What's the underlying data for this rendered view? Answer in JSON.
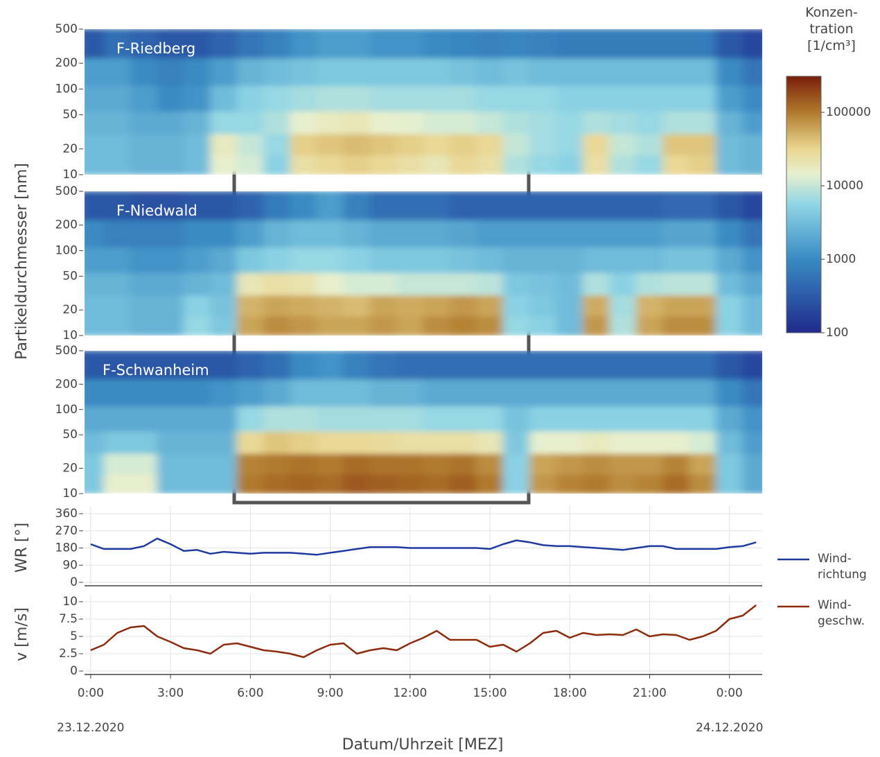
{
  "x_axis": {
    "label": "Datum/Uhrzeit [MEZ]",
    "xlim": [
      -0.23,
      25.23
    ],
    "xticks": [
      {
        "value": 0,
        "label": "0:00"
      },
      {
        "value": 3,
        "label": "3:00"
      },
      {
        "value": 6,
        "label": "6:00"
      },
      {
        "value": 9,
        "label": "9:00"
      },
      {
        "value": 12,
        "label": "12:00"
      },
      {
        "value": 15,
        "label": "15:00"
      },
      {
        "value": 18,
        "label": "18:00"
      },
      {
        "value": 21,
        "label": "21:00"
      },
      {
        "value": 24,
        "label": "0:00"
      }
    ],
    "date_labels": [
      {
        "value": 0,
        "label": "23.12.2020"
      },
      {
        "value": 24,
        "label": "24.12.2020"
      }
    ]
  },
  "heatmap_y_label": "Partikeldurchmesser [nm]",
  "colorbar": {
    "title": "Konzen-\ntration\n[1/cm³]",
    "clim": [
      100,
      310000
    ],
    "log": true,
    "ticks": [
      100,
      1000,
      10000,
      100000
    ],
    "colorscale": [
      [
        0,
        "#1f2a8c"
      ],
      [
        0.29,
        "#3a8cc4"
      ],
      [
        0.5,
        "#8fd6e6"
      ],
      [
        0.62,
        "#e8f0cf"
      ],
      [
        0.72,
        "#e9d58f"
      ],
      [
        0.86,
        "#b07a2c"
      ],
      [
        1,
        "#7a1e0a"
      ]
    ]
  },
  "chart_data": [
    {
      "type": "heatmap",
      "title": "F-Riedberg",
      "log_y": true,
      "ylim": [
        10,
        500
      ],
      "yticks": [
        10,
        20,
        50,
        100,
        200,
        500
      ],
      "x": [
        0,
        1,
        2,
        3,
        4,
        5,
        6,
        7,
        8,
        9,
        10,
        11,
        12,
        13,
        14,
        15,
        16,
        17,
        18,
        19,
        20,
        21,
        22,
        23,
        24,
        25
      ],
      "y_bins": [
        10,
        17,
        30,
        55,
        110,
        230,
        500
      ],
      "values": [
        [
          3000,
          3000,
          2500,
          2500,
          3000,
          15000,
          12000,
          5000,
          25000,
          30000,
          35000,
          30000,
          25000,
          20000,
          30000,
          25000,
          8000,
          6000,
          5000,
          25000,
          8000,
          6000,
          30000,
          35000,
          3000,
          2500
        ],
        [
          3000,
          3000,
          2500,
          2500,
          3000,
          18000,
          10000,
          6000,
          35000,
          40000,
          45000,
          40000,
          35000,
          30000,
          35000,
          30000,
          10000,
          7000,
          6000,
          30000,
          10000,
          8000,
          40000,
          40000,
          3000,
          2500
        ],
        [
          2500,
          2500,
          2000,
          2000,
          2500,
          6000,
          6000,
          8000,
          15000,
          18000,
          20000,
          15000,
          14000,
          12000,
          12000,
          10000,
          8000,
          7000,
          6000,
          8000,
          7000,
          6000,
          8000,
          8000,
          2500,
          1500
        ],
        [
          2000,
          2000,
          1500,
          1000,
          1200,
          3000,
          5000,
          6000,
          7000,
          8000,
          8000,
          7000,
          7000,
          7000,
          7000,
          6000,
          6000,
          6000,
          5000,
          5000,
          5000,
          5000,
          5000,
          5000,
          1500,
          1000
        ],
        [
          1500,
          1500,
          1000,
          800,
          1000,
          1500,
          2500,
          3000,
          3500,
          4000,
          4000,
          4000,
          4000,
          4000,
          3500,
          3000,
          3500,
          3000,
          3000,
          3000,
          3000,
          3000,
          3000,
          3000,
          1000,
          600
        ],
        [
          300,
          500,
          400,
          300,
          300,
          400,
          600,
          800,
          1200,
          1500,
          1500,
          1200,
          1200,
          1000,
          900,
          800,
          900,
          800,
          700,
          700,
          700,
          700,
          700,
          700,
          300,
          200
        ]
      ]
    },
    {
      "type": "heatmap",
      "title": "F-Niedwald",
      "log_y": true,
      "ylim": [
        10,
        500
      ],
      "yticks": [
        10,
        20,
        50,
        100,
        200,
        500
      ],
      "x": [
        0,
        1,
        2,
        3,
        4,
        5,
        6,
        7,
        8,
        9,
        10,
        11,
        12,
        13,
        14,
        15,
        16,
        17,
        18,
        19,
        20,
        21,
        22,
        23,
        24,
        25
      ],
      "y_bins": [
        10,
        17,
        30,
        55,
        110,
        230,
        500
      ],
      "values": [
        [
          3000,
          3000,
          2500,
          2500,
          6000,
          4000,
          60000,
          80000,
          70000,
          60000,
          60000,
          70000,
          60000,
          80000,
          90000,
          80000,
          6000,
          5000,
          3000,
          70000,
          8000,
          60000,
          80000,
          80000,
          5000,
          3000
        ],
        [
          3000,
          3000,
          2500,
          2500,
          5000,
          3500,
          50000,
          60000,
          55000,
          50000,
          45000,
          60000,
          55000,
          60000,
          70000,
          60000,
          5000,
          4000,
          3000,
          55000,
          7000,
          50000,
          60000,
          60000,
          5000,
          3000
        ],
        [
          2500,
          2500,
          2000,
          2000,
          2500,
          3000,
          20000,
          25000,
          22000,
          15000,
          12000,
          12000,
          10000,
          10000,
          10000,
          9000,
          4000,
          3500,
          3000,
          8000,
          5000,
          8000,
          9000,
          9000,
          3000,
          2000
        ],
        [
          1500,
          1500,
          1200,
          1200,
          1500,
          2000,
          4000,
          5000,
          6000,
          6000,
          5000,
          4000,
          4000,
          4000,
          3500,
          3000,
          2500,
          2500,
          2500,
          3000,
          3000,
          3000,
          3500,
          3500,
          2000,
          1200
        ],
        [
          1000,
          800,
          800,
          800,
          1000,
          1000,
          1500,
          2500,
          3000,
          3000,
          2500,
          2000,
          2000,
          2000,
          1800,
          1500,
          1500,
          1500,
          1500,
          1500,
          1500,
          1500,
          1800,
          1800,
          1000,
          600
        ],
        [
          300,
          300,
          250,
          250,
          300,
          300,
          400,
          700,
          1000,
          1500,
          800,
          500,
          500,
          500,
          400,
          400,
          400,
          400,
          400,
          400,
          400,
          400,
          450,
          450,
          300,
          200
        ]
      ]
    },
    {
      "type": "heatmap",
      "title": "F-Schwanheim",
      "log_y": true,
      "ylim": [
        10,
        500
      ],
      "yticks": [
        10,
        20,
        50,
        100,
        200,
        500
      ],
      "x": [
        0,
        1,
        2,
        3,
        4,
        5,
        6,
        7,
        8,
        9,
        10,
        11,
        12,
        13,
        14,
        15,
        16,
        17,
        18,
        19,
        20,
        21,
        22,
        23,
        24,
        25
      ],
      "y_bins": [
        10,
        17,
        30,
        55,
        110,
        230,
        500
      ],
      "values": [
        [
          4000,
          15000,
          15000,
          3000,
          3000,
          3000,
          100000,
          120000,
          130000,
          120000,
          150000,
          140000,
          130000,
          120000,
          140000,
          100000,
          5000,
          70000,
          90000,
          100000,
          80000,
          90000,
          120000,
          80000,
          4000,
          2000
        ],
        [
          4000,
          12000,
          12000,
          3000,
          3000,
          3000,
          90000,
          100000,
          110000,
          100000,
          120000,
          110000,
          110000,
          100000,
          110000,
          80000,
          5000,
          60000,
          70000,
          80000,
          70000,
          70000,
          90000,
          60000,
          4000,
          2000
        ],
        [
          3000,
          4000,
          4000,
          2500,
          2500,
          2500,
          30000,
          40000,
          35000,
          30000,
          30000,
          28000,
          25000,
          25000,
          25000,
          20000,
          4000,
          15000,
          15000,
          18000,
          15000,
          15000,
          15000,
          12000,
          3000,
          1500
        ],
        [
          2000,
          2000,
          2000,
          2000,
          2000,
          2000,
          6000,
          8000,
          8000,
          7000,
          7000,
          7000,
          7000,
          6000,
          6000,
          6000,
          3500,
          5000,
          5000,
          5000,
          5000,
          5000,
          5000,
          5000,
          2000,
          1200
        ],
        [
          1000,
          1000,
          1000,
          1000,
          1000,
          1200,
          1500,
          2000,
          3000,
          3000,
          3000,
          2500,
          2500,
          2000,
          2000,
          2000,
          2000,
          2000,
          2000,
          2000,
          2000,
          2000,
          2000,
          2000,
          1000,
          600
        ],
        [
          300,
          300,
          300,
          300,
          300,
          300,
          400,
          500,
          1000,
          1200,
          800,
          600,
          500,
          500,
          500,
          500,
          500,
          500,
          500,
          500,
          500,
          500,
          500,
          500,
          300,
          200
        ]
      ]
    },
    {
      "type": "line",
      "y_label": "WR [°]",
      "ylim": [
        -18,
        400
      ],
      "yticks": [
        0,
        90,
        180,
        270,
        360
      ],
      "grid": true,
      "legend": "right",
      "x": [
        0,
        0.5,
        1,
        1.5,
        2,
        2.5,
        3,
        3.5,
        4,
        4.5,
        5,
        5.5,
        6,
        6.5,
        7,
        7.5,
        8,
        8.5,
        9,
        9.5,
        10,
        10.5,
        11,
        11.5,
        12,
        12.5,
        13,
        13.5,
        14,
        14.5,
        15,
        15.5,
        16,
        16.5,
        17,
        17.5,
        18,
        18.5,
        19,
        19.5,
        20,
        20.5,
        21,
        21.5,
        22,
        22.5,
        23,
        23.5,
        24,
        24.5,
        25
      ],
      "series": [
        {
          "name": "Wind-\nrichtung",
          "color": "#1f3a9e",
          "values": [
            200,
            175,
            175,
            175,
            190,
            230,
            200,
            165,
            170,
            150,
            160,
            155,
            150,
            155,
            155,
            155,
            150,
            145,
            155,
            165,
            175,
            185,
            185,
            185,
            180,
            180,
            180,
            180,
            180,
            180,
            175,
            200,
            220,
            210,
            195,
            190,
            190,
            185,
            180,
            175,
            170,
            180,
            190,
            190,
            175,
            175,
            175,
            175,
            185,
            190,
            210
          ]
        }
      ]
    },
    {
      "type": "line",
      "y_label": "v [m/s]",
      "ylim": [
        -0.5,
        11
      ],
      "yticks": [
        0,
        2.5,
        5,
        7.5,
        10
      ],
      "grid": true,
      "legend": "right",
      "x": [
        0,
        0.5,
        1,
        1.5,
        2,
        2.5,
        3,
        3.5,
        4,
        4.5,
        5,
        5.5,
        6,
        6.5,
        7,
        7.5,
        8,
        8.5,
        9,
        9.5,
        10,
        10.5,
        11,
        11.5,
        12,
        12.5,
        13,
        13.5,
        14,
        14.5,
        15,
        15.5,
        16,
        16.5,
        17,
        17.5,
        18,
        18.5,
        19,
        19.5,
        20,
        20.5,
        21,
        21.5,
        22,
        22.5,
        23,
        23.5,
        24,
        24.5,
        25
      ],
      "series": [
        {
          "name": "Wind-\ngeschw.",
          "color": "#8b2a0c",
          "values": [
            3,
            3.8,
            5.5,
            6.3,
            6.5,
            5,
            4.2,
            3.3,
            3,
            2.5,
            3.8,
            4,
            3.5,
            3,
            2.8,
            2.5,
            2,
            3,
            3.8,
            4,
            2.5,
            3,
            3.3,
            3,
            4,
            4.8,
            5.8,
            4.5,
            4.5,
            4.5,
            3.5,
            3.8,
            2.8,
            4,
            5.5,
            5.8,
            4.8,
            5.5,
            5.2,
            5.3,
            5.2,
            6,
            5,
            5.3,
            5.2,
            4.5,
            5,
            5.8,
            7.5,
            8,
            9.5
          ]
        }
      ]
    }
  ]
}
